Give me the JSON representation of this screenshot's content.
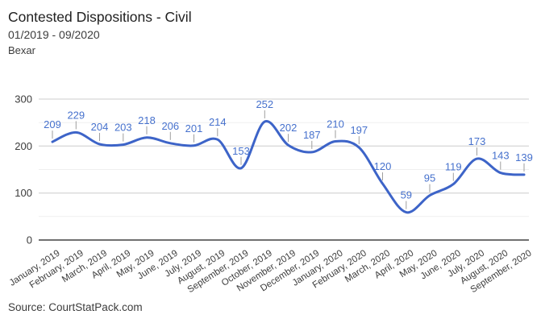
{
  "header": {
    "title": "Contested Dispositions - Civil",
    "subtitle": "01/2019 - 09/2020",
    "region": "Bexar"
  },
  "footer": {
    "source": "Source: CourtStatPack.com"
  },
  "chart_data": {
    "type": "line",
    "title": "Contested Dispositions - Civil",
    "categories": [
      "January, 2019",
      "February, 2019",
      "March, 2019",
      "April, 2019",
      "May, 2019",
      "June, 2019",
      "July, 2019",
      "August, 2019",
      "September, 2019",
      "October, 2019",
      "November, 2019",
      "December, 2019",
      "January, 2020",
      "February, 2020",
      "March, 2020",
      "April, 2020",
      "May, 2020",
      "June, 2020",
      "July, 2020",
      "August, 2020",
      "September, 2020"
    ],
    "values": [
      209,
      229,
      204,
      203,
      218,
      206,
      201,
      214,
      153,
      252,
      202,
      187,
      210,
      197,
      120,
      59,
      95,
      119,
      173,
      143,
      139
    ],
    "ylim": [
      0,
      300
    ],
    "y_ticks": [
      0,
      100,
      200,
      300
    ],
    "y_minor_ticks": [
      50,
      150,
      250
    ],
    "grid": true,
    "smooth": true,
    "legend_position": "none",
    "colors": {
      "series_line": "#3d64c8",
      "annotation_text": "#4671cd",
      "annotation_stem": "#9e9e9e",
      "major_grid": "#cccccc",
      "minor_grid": "#efefef",
      "baseline": "#424242",
      "axis_text": "#3c3c3c"
    }
  }
}
